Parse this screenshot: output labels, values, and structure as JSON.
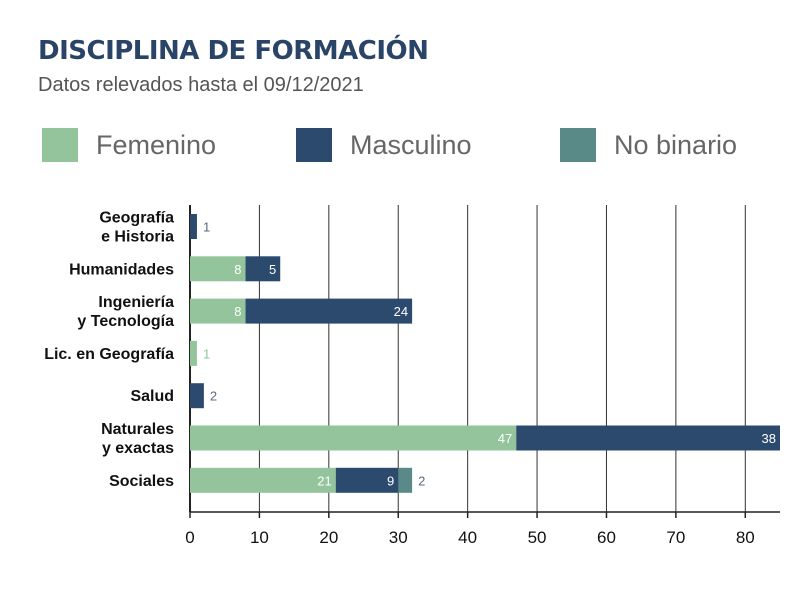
{
  "title": "DISCIPLINA DE FORMACIÓN",
  "subtitle": "Datos relevados hasta el 09/12/2021",
  "colors": {
    "femenino": "#93c49b",
    "masculino": "#2b4a6e",
    "no_binario": "#5a8a87"
  },
  "chart_data": {
    "type": "bar",
    "orientation": "horizontal",
    "stacked": true,
    "categories": [
      [
        "Geografía",
        "e Historia"
      ],
      [
        "Humanidades"
      ],
      [
        "Ingeniería",
        "y Tecnología"
      ],
      [
        "Lic. en Geografía"
      ],
      [
        "Salud"
      ],
      [
        "Naturales",
        "y exactas"
      ],
      [
        "Sociales"
      ]
    ],
    "series": [
      {
        "name": "Femenino",
        "color": "#93c49b",
        "values": [
          0,
          8,
          8,
          1,
          0,
          47,
          21
        ]
      },
      {
        "name": "Masculino",
        "color": "#2b4a6e",
        "values": [
          1,
          5,
          24,
          0,
          2,
          38,
          9
        ]
      },
      {
        "name": "No binario",
        "color": "#5a8a87",
        "values": [
          0,
          0,
          0,
          0,
          0,
          0,
          2
        ]
      }
    ],
    "xlim": [
      0,
      85
    ],
    "xticks": [
      0,
      10,
      20,
      30,
      40,
      50,
      60,
      70,
      80
    ],
    "grid": "vertical",
    "legend": "top"
  }
}
